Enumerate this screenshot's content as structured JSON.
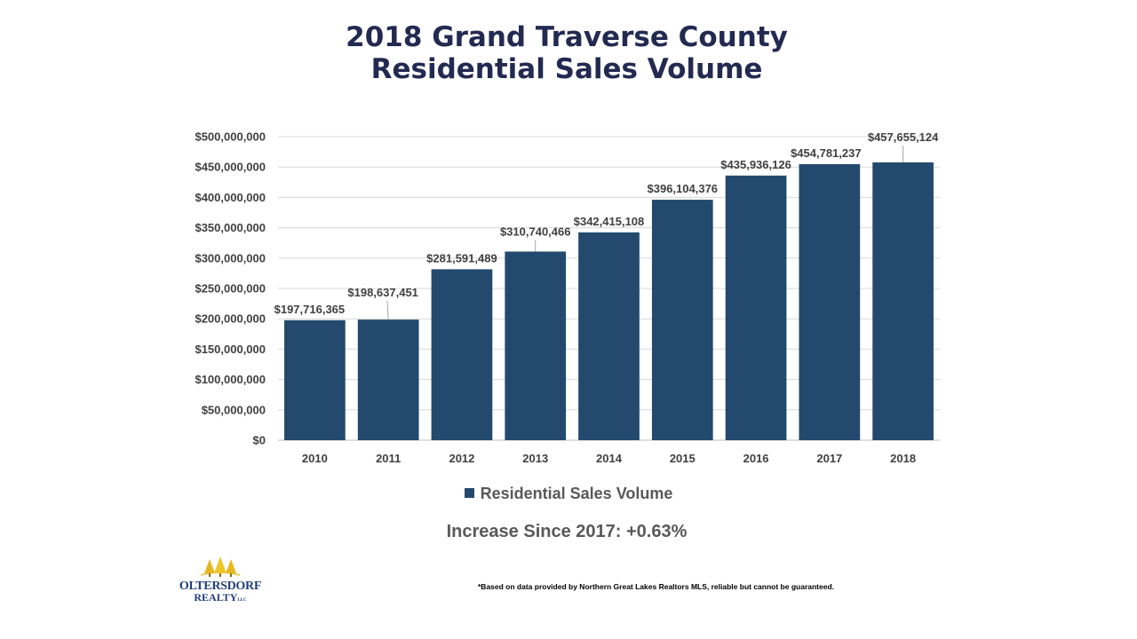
{
  "title": {
    "line1": "2018 Grand Traverse County",
    "line2": "Residential Sales Volume"
  },
  "chart_data": {
    "type": "bar",
    "categories": [
      "2010",
      "2011",
      "2012",
      "2013",
      "2014",
      "2015",
      "2016",
      "2017",
      "2018"
    ],
    "series": [
      {
        "name": "Residential Sales Volume",
        "values": [
          197716365,
          198637451,
          281591489,
          310740466,
          342415108,
          396104376,
          435936126,
          454781237,
          457655124
        ],
        "data_labels": [
          "$197,716,365",
          "$198,637,451",
          "$281,591,489",
          "$310,740,466",
          "$342,415,108",
          "$396,104,376",
          "$435,936,126",
          "$454,781,237",
          "$457,655,124"
        ]
      }
    ],
    "ylim": [
      0,
      500000000
    ],
    "yticks": [
      0,
      50000000,
      100000000,
      150000000,
      200000000,
      250000000,
      300000000,
      350000000,
      400000000,
      450000000,
      500000000
    ],
    "ytick_labels": [
      "$0",
      "$50,000,000",
      "$100,000,000",
      "$150,000,000",
      "$200,000,000",
      "$250,000,000",
      "$300,000,000",
      "$350,000,000",
      "$400,000,000",
      "$450,000,000",
      "$500,000,000"
    ],
    "grid": true,
    "legend": "bottom",
    "bar_color": "#234a6e"
  },
  "legend_label": "Residential Sales Volume",
  "increase_note": "Increase Since 2017: +0.63%",
  "logo": {
    "line1": "OLTERSDORF",
    "line2": "REALTY",
    "suffix": "LLC"
  },
  "disclaimer": "*Based on data provided by Northern Great Lakes Realtors MLS, reliable but cannot be guaranteed."
}
